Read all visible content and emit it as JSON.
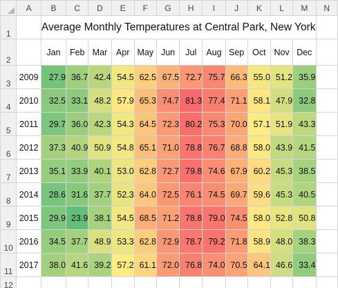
{
  "columns": [
    "A",
    "B",
    "C",
    "D",
    "E",
    "F",
    "G",
    "H",
    "I",
    "J",
    "K",
    "L",
    "M",
    "N"
  ],
  "rows": [
    "1",
    "2",
    "3",
    "4",
    "5",
    "6",
    "7",
    "8",
    "9",
    "10",
    "11",
    "12"
  ],
  "title": "Average Monthly Temperatures at Central Park, New York",
  "months": [
    "Jan",
    "Feb",
    "Mar",
    "Apr",
    "May",
    "Jun",
    "Jul",
    "Aug",
    "Sep",
    "Oct",
    "Nov",
    "Dec"
  ],
  "years": [
    "2009",
    "2010",
    "2011",
    "2012",
    "2013",
    "2014",
    "2015",
    "2016",
    "2017"
  ],
  "values": [
    [
      "27.9",
      "36.7",
      "42.4",
      "54.5",
      "62.5",
      "67.5",
      "72.7",
      "75.7",
      "66.3",
      "55.0",
      "51.2",
      "35.9"
    ],
    [
      "32.5",
      "33.1",
      "48.2",
      "57.9",
      "65.3",
      "74.7",
      "81.3",
      "77.4",
      "71.1",
      "58.1",
      "47.9",
      "32.8"
    ],
    [
      "29.7",
      "36.0",
      "42.3",
      "54.3",
      "64.5",
      "72.3",
      "80.2",
      "75.3",
      "70.0",
      "57.1",
      "51.9",
      "43.3"
    ],
    [
      "37.3",
      "40.9",
      "50.9",
      "54.8",
      "65.1",
      "71.0",
      "78.8",
      "76.7",
      "68.8",
      "58.0",
      "43.9",
      "41.5"
    ],
    [
      "35.1",
      "33.9",
      "40.1",
      "53.0",
      "62.8",
      "72.7",
      "79.8",
      "74.6",
      "67.9",
      "60.2",
      "45.3",
      "38.5"
    ],
    [
      "28.6",
      "31.6",
      "37.7",
      "52.3",
      "64.0",
      "72.5",
      "76.1",
      "74.5",
      "69.7",
      "59.6",
      "45.3",
      "40.5"
    ],
    [
      "29.9",
      "23.9",
      "38.1",
      "54.5",
      "68.5",
      "71.2",
      "78.8",
      "79.0",
      "74.5",
      "58.0",
      "52.8",
      "50.8"
    ],
    [
      "34.5",
      "37.7",
      "48.9",
      "53.3",
      "62.8",
      "72.9",
      "78.7",
      "79.2",
      "71.8",
      "58.9",
      "48.0",
      "38.3"
    ],
    [
      "38.0",
      "41.6",
      "39.2",
      "57.2",
      "61.1",
      "72.0",
      "76.8",
      "74.0",
      "70.5",
      "64.1",
      "46.6",
      "33.4"
    ]
  ],
  "color_scale": {
    "low": "#63be7b",
    "mid": "#ffeb84",
    "high": "#f8696b"
  }
}
